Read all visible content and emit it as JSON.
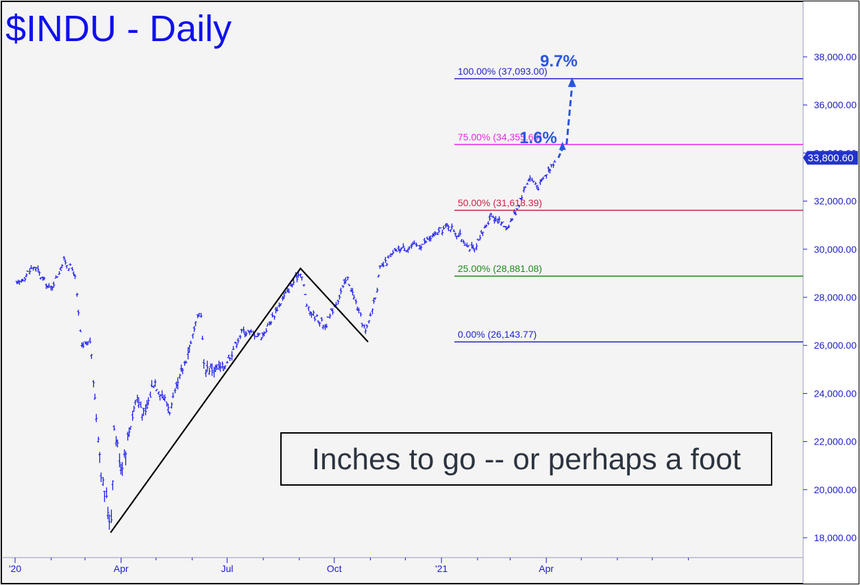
{
  "chart_data": {
    "type": "ohlc-bar",
    "title": "$INDU - Daily",
    "annotation": "Inches to go -- or perhaps a foot",
    "ylim": [
      17500,
      40000
    ],
    "y_ticks": [
      18000,
      20000,
      22000,
      24000,
      26000,
      28000,
      30000,
      32000,
      34000,
      36000,
      38000
    ],
    "y_tick_labels": [
      "18,000.00",
      "20,000.00",
      "22,000.00",
      "24,000.00",
      "26,000.00",
      "28,000.00",
      "30,000.00",
      "32,000.00",
      "34,000.00",
      "36,000.00",
      "38,000.00"
    ],
    "x_ticks": [
      "'20",
      "Apr",
      "Jul",
      "Oct",
      "'21",
      "Apr"
    ],
    "last_price": 33800.6,
    "last_price_label": "33,800.60",
    "series_color": "#1a1aee",
    "fib_levels": [
      {
        "pct": "100.00%",
        "value": 37093.0,
        "label": "100.00% (37,093.00)",
        "color": "#2222cc"
      },
      {
        "pct": "75.00%",
        "value": 34355.69,
        "label": "75.00% (34,355.69)",
        "color": "#ee22ee"
      },
      {
        "pct": "50.00%",
        "value": 31618.39,
        "label": "50.00% (31,618.39)",
        "color": "#cc2244"
      },
      {
        "pct": "25.00%",
        "value": 28881.08,
        "label": "25.00% (28,881.08)",
        "color": "#1a8a1a"
      },
      {
        "pct": "0.00%",
        "value": 26143.77,
        "label": "0.00% (26,143.77)",
        "color": "#2222cc"
      }
    ],
    "abc_pattern": [
      {
        "date": "2020-03-23",
        "value": 18214
      },
      {
        "date": "2020-09-02",
        "value": 29199
      },
      {
        "date": "2020-10-30",
        "value": 26144
      }
    ],
    "projection": {
      "from": 33800.6,
      "targets": [
        34355.69,
        37093.0
      ],
      "labels": [
        "1.6%",
        "9.7%"
      ]
    },
    "price_path": [
      {
        "date": "2020-01-02",
        "value": 28500
      },
      {
        "date": "2020-01-17",
        "value": 29300
      },
      {
        "date": "2020-01-31",
        "value": 28300
      },
      {
        "date": "2020-02-12",
        "value": 29550
      },
      {
        "date": "2020-02-21",
        "value": 29000
      },
      {
        "date": "2020-02-27",
        "value": 25800
      },
      {
        "date": "2020-03-05",
        "value": 26200
      },
      {
        "date": "2020-03-09",
        "value": 23900
      },
      {
        "date": "2020-03-16",
        "value": 20200
      },
      {
        "date": "2020-03-23",
        "value": 18600
      },
      {
        "date": "2020-03-26",
        "value": 22500
      },
      {
        "date": "2020-04-01",
        "value": 20950
      },
      {
        "date": "2020-04-14",
        "value": 23900
      },
      {
        "date": "2020-04-21",
        "value": 23000
      },
      {
        "date": "2020-04-29",
        "value": 24600
      },
      {
        "date": "2020-05-13",
        "value": 23300
      },
      {
        "date": "2020-06-08",
        "value": 27500
      },
      {
        "date": "2020-06-11",
        "value": 25100
      },
      {
        "date": "2020-06-26",
        "value": 25000
      },
      {
        "date": "2020-07-14",
        "value": 26600
      },
      {
        "date": "2020-07-31",
        "value": 26400
      },
      {
        "date": "2020-08-17",
        "value": 27900
      },
      {
        "date": "2020-09-02",
        "value": 29100
      },
      {
        "date": "2020-09-08",
        "value": 27500
      },
      {
        "date": "2020-09-23",
        "value": 26800
      },
      {
        "date": "2020-10-12",
        "value": 28800
      },
      {
        "date": "2020-10-28",
        "value": 26500
      },
      {
        "date": "2020-11-06",
        "value": 28300
      },
      {
        "date": "2020-11-09",
        "value": 29150
      },
      {
        "date": "2020-11-24",
        "value": 30000
      },
      {
        "date": "2020-12-15",
        "value": 30200
      },
      {
        "date": "2021-01-07",
        "value": 31000
      },
      {
        "date": "2021-01-29",
        "value": 29900
      },
      {
        "date": "2021-02-12",
        "value": 31450
      },
      {
        "date": "2021-02-26",
        "value": 30900
      },
      {
        "date": "2021-03-05",
        "value": 31500
      },
      {
        "date": "2021-03-17",
        "value": 33000
      },
      {
        "date": "2021-03-25",
        "value": 32600
      },
      {
        "date": "2021-04-09",
        "value": 33800
      }
    ]
  }
}
